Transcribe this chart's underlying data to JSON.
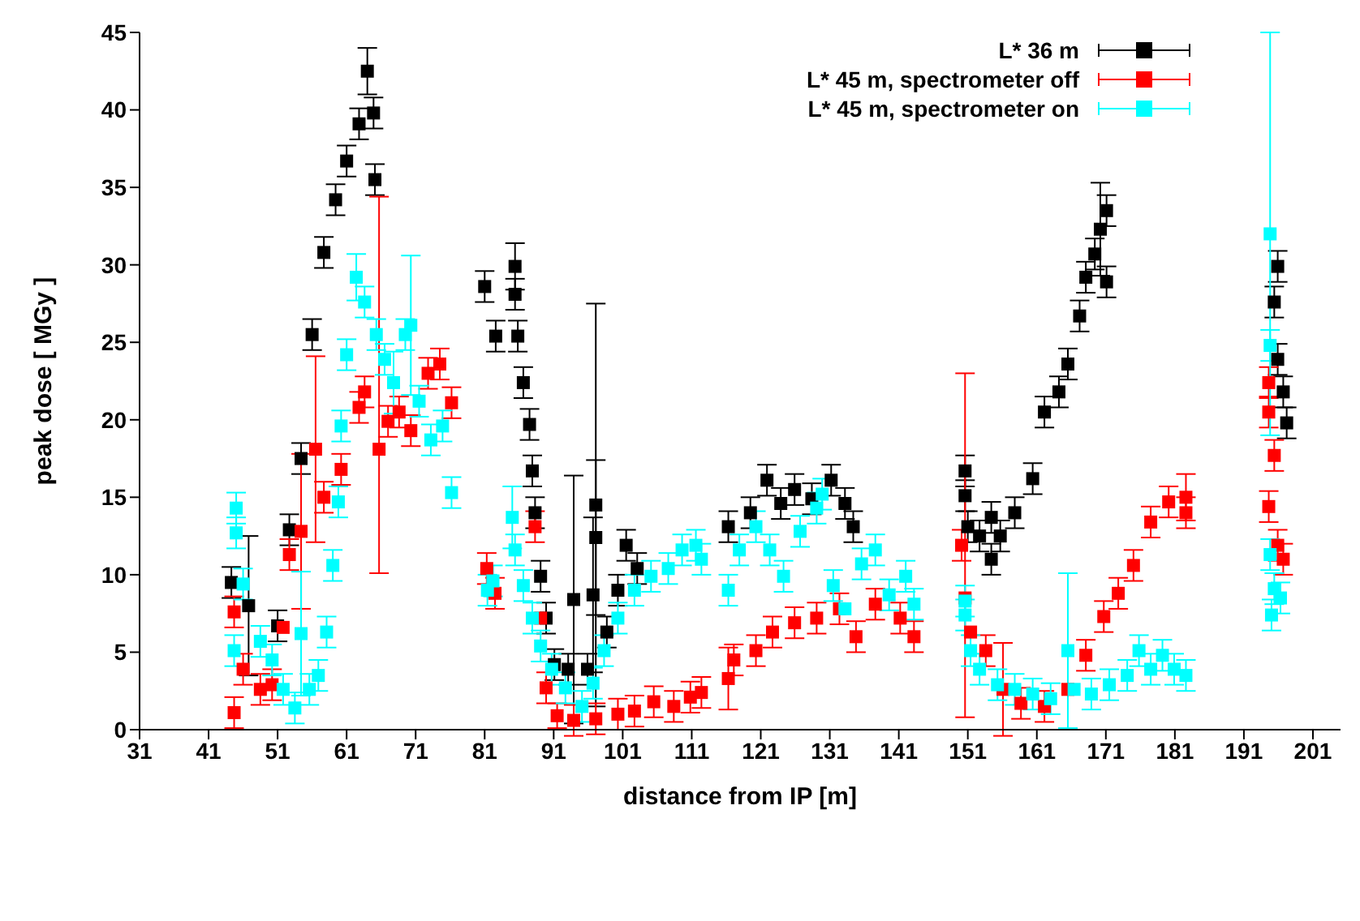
{
  "chart_data": {
    "type": "scatter",
    "xlabel": "distance from IP [m]",
    "ylabel": "peak dose [ MGy ]",
    "xlim": [
      31,
      205
    ],
    "xticks": [
      31,
      41,
      51,
      61,
      71,
      81,
      91,
      101,
      111,
      121,
      131,
      141,
      151,
      161,
      171,
      181,
      191,
      201
    ],
    "ylim": [
      0,
      45
    ],
    "yticks": [
      0,
      5,
      10,
      15,
      20,
      25,
      30,
      35,
      40,
      45
    ],
    "grid": false,
    "legend": "top right",
    "marker": "square",
    "series": [
      {
        "name": "L* 36 m",
        "color": "#000000",
        "x": [
          44.3,
          46.8,
          51,
          52.7,
          54.4,
          56,
          57.7,
          59.4,
          61,
          62.8,
          64,
          64.9,
          65.1,
          81,
          82.6,
          85.4,
          85.4,
          85.8,
          86.6,
          87.5,
          87.9,
          88.3,
          89.1,
          89.9,
          91.1,
          93.1,
          93.9,
          95.9,
          96.7,
          97.1,
          97.1,
          98.7,
          100.3,
          101.5,
          103.1,
          116.3,
          119.5,
          121.9,
          123.9,
          125.9,
          128.4,
          131.2,
          133.2,
          134.4,
          150.6,
          150.6,
          151,
          152.7,
          154.4,
          154.4,
          155.7,
          157.8,
          160.4,
          162.1,
          164.2,
          165.5,
          167.2,
          168.1,
          169.4,
          170.2,
          171.1,
          171.1,
          195.4,
          195.9,
          195.9,
          196.7,
          197.2
        ],
        "values": [
          9.5,
          8,
          6.7,
          12.9,
          17.5,
          25.5,
          30.8,
          34.2,
          36.7,
          39.1,
          42.5,
          39.8,
          35.5,
          28.6,
          25.4,
          29.9,
          28.1,
          25.4,
          22.4,
          19.7,
          16.7,
          14,
          9.9,
          7.2,
          4.2,
          3.9,
          8.4,
          3.9,
          8.7,
          12.4,
          14.5,
          6.3,
          9,
          11.9,
          10.4,
          13.1,
          14,
          16.1,
          14.6,
          15.5,
          14.9,
          16.1,
          14.6,
          13.1,
          16.7,
          15.1,
          13.1,
          12.5,
          13.7,
          11,
          12.5,
          14,
          16.2,
          20.5,
          21.8,
          23.6,
          26.7,
          29.2,
          30.7,
          32.3,
          33.5,
          28.9,
          27.6,
          29.9,
          23.9,
          21.8,
          19.8
        ],
        "errors": [
          1,
          4.5,
          1,
          1,
          1,
          1,
          1,
          1,
          1,
          1,
          1.5,
          1,
          1,
          1,
          1,
          1.5,
          1,
          1,
          1,
          1,
          1,
          1,
          1,
          1,
          1,
          1,
          8,
          1,
          5,
          5,
          13,
          1,
          1,
          1,
          1,
          1,
          1,
          1,
          1,
          1,
          1,
          1,
          1,
          1,
          1,
          1,
          1,
          1,
          1,
          1,
          1,
          1,
          1,
          1,
          1,
          1,
          1,
          1,
          1,
          3,
          1,
          1,
          1,
          1,
          1,
          1,
          1
        ]
      },
      {
        "name": "L* 45 m, spectrometer off",
        "color": "#ff0000",
        "x": [
          44.7,
          44.7,
          46,
          48.5,
          50.2,
          51.8,
          52.7,
          54.4,
          56.5,
          57.7,
          60.2,
          62.8,
          63.6,
          65.7,
          67,
          68.6,
          70.3,
          72.8,
          74.5,
          76.2,
          81.3,
          82.5,
          88.3,
          89.1,
          89.9,
          91.5,
          93.9,
          97.1,
          100.3,
          102.7,
          105.5,
          108.4,
          110.8,
          112.4,
          116.3,
          117.1,
          120.3,
          122.7,
          125.9,
          129.1,
          132.4,
          134.8,
          137.6,
          141.2,
          143.2,
          150.1,
          150.6,
          151.4,
          153.6,
          156.1,
          158.7,
          162.1,
          165.5,
          168.1,
          170.7,
          172.8,
          175,
          177.5,
          180.1,
          182.6,
          182.6,
          194.6,
          194.6,
          195.4,
          194.6,
          195.9,
          196.7
        ],
        "values": [
          1.1,
          7.6,
          3.9,
          2.6,
          2.9,
          6.6,
          11.3,
          12.8,
          18.1,
          15,
          16.8,
          20.8,
          21.8,
          18.1,
          19.9,
          20.5,
          19.3,
          23,
          23.6,
          21.1,
          10.4,
          8.8,
          13.1,
          7.2,
          2.7,
          0.9,
          0.6,
          0.7,
          1,
          1.2,
          1.8,
          1.5,
          2.1,
          2.4,
          3.3,
          4.5,
          5.1,
          6.3,
          6.9,
          7.2,
          7.8,
          6,
          8.1,
          7.2,
          6,
          11.9,
          8.5,
          6.3,
          5.1,
          2.6,
          1.7,
          1.5,
          2.6,
          4.8,
          7.3,
          8.8,
          10.6,
          13.4,
          14.7,
          15,
          14,
          22.4,
          20.5,
          17.7,
          14.4,
          11.9,
          11
        ],
        "errors": [
          1,
          1,
          1,
          1,
          1,
          null,
          1,
          5,
          6,
          1,
          1,
          1,
          1,
          [
            10.1,
            34.4
          ],
          1,
          1,
          1,
          1,
          1,
          1,
          1,
          1,
          1,
          null,
          1,
          0.8,
          1,
          1,
          1,
          1,
          1,
          1,
          1,
          1,
          2,
          1,
          1,
          1,
          1,
          1,
          1,
          1,
          1,
          1,
          1,
          1,
          [
            0.8,
            23
          ],
          null,
          1,
          3,
          1,
          1,
          null,
          1,
          1,
          1,
          1,
          1,
          1,
          1.5,
          1,
          1,
          1,
          1,
          1,
          1,
          1
        ]
      },
      {
        "name": "L* 45 m, spectrometer on",
        "color": "#00ffff",
        "x": [
          45,
          45,
          44.7,
          46,
          48.5,
          50.2,
          51.8,
          53.5,
          54.4,
          55.6,
          56.9,
          58.1,
          59,
          59.8,
          60.2,
          61,
          62.4,
          63.6,
          65.3,
          66.5,
          67.8,
          69.5,
          70.3,
          71.5,
          73.2,
          74.9,
          76.2,
          81.4,
          82.2,
          85,
          85.4,
          86.6,
          87.9,
          89.1,
          90.7,
          92.7,
          95.1,
          96.7,
          98.3,
          100.3,
          102.7,
          105.1,
          107.6,
          109.6,
          111.6,
          112.4,
          116.3,
          117.9,
          120.3,
          122.3,
          124.3,
          126.7,
          129.1,
          129.9,
          131.5,
          133.2,
          135.6,
          137.6,
          139.6,
          142,
          143.2,
          150.6,
          150.6,
          151.4,
          152.7,
          155.3,
          157.8,
          160.4,
          163,
          165.5,
          166.4,
          168.9,
          171.5,
          174.1,
          175.8,
          177.5,
          179.2,
          180.9,
          182.6,
          194.8,
          194.8,
          194.8,
          195.4,
          195,
          196.3
        ],
        "values": [
          14.3,
          12.7,
          5.1,
          9.4,
          5.7,
          4.5,
          2.6,
          1.4,
          6.2,
          2.6,
          3.5,
          6.3,
          10.6,
          14.7,
          19.6,
          24.2,
          29.2,
          27.6,
          25.5,
          23.9,
          22.4,
          25.5,
          26.1,
          21.2,
          18.7,
          19.6,
          15.3,
          9,
          9.6,
          13.7,
          11.6,
          9.3,
          7.2,
          5.4,
          3.9,
          2.7,
          1.5,
          3,
          5.1,
          7.2,
          9,
          9.9,
          10.4,
          11.6,
          11.9,
          11,
          9,
          11.6,
          13.1,
          11.6,
          9.9,
          12.8,
          14.3,
          15.2,
          9.3,
          7.8,
          10.7,
          11.6,
          8.7,
          9.9,
          8.1,
          8.3,
          7.4,
          5.1,
          3.9,
          2.9,
          2.6,
          2.3,
          2,
          5.1,
          2.6,
          2.3,
          2.9,
          3.5,
          5.1,
          3.9,
          4.8,
          3.9,
          3.5,
          32,
          24.8,
          11.3,
          9.1,
          7.4,
          8.5
        ],
        "errors": [
          1,
          1,
          1,
          1,
          1,
          1,
          1,
          1,
          4,
          1,
          1,
          1,
          1,
          1,
          1,
          1,
          1.5,
          1,
          1,
          1,
          2,
          1,
          4.5,
          1,
          1,
          1,
          1,
          1,
          1,
          2,
          1,
          1,
          1,
          1,
          1,
          1,
          1,
          1,
          1,
          1,
          1,
          1,
          1,
          1,
          1,
          1,
          1,
          1,
          1,
          1,
          1,
          1,
          1,
          1,
          1,
          null,
          1,
          1,
          1,
          1,
          1,
          1,
          1,
          1,
          1,
          1,
          1,
          1,
          1,
          5,
          null,
          1,
          1,
          1,
          1,
          1,
          1,
          1,
          1,
          [
            19,
            45
          ],
          1,
          1,
          1,
          1,
          1
        ]
      }
    ]
  }
}
